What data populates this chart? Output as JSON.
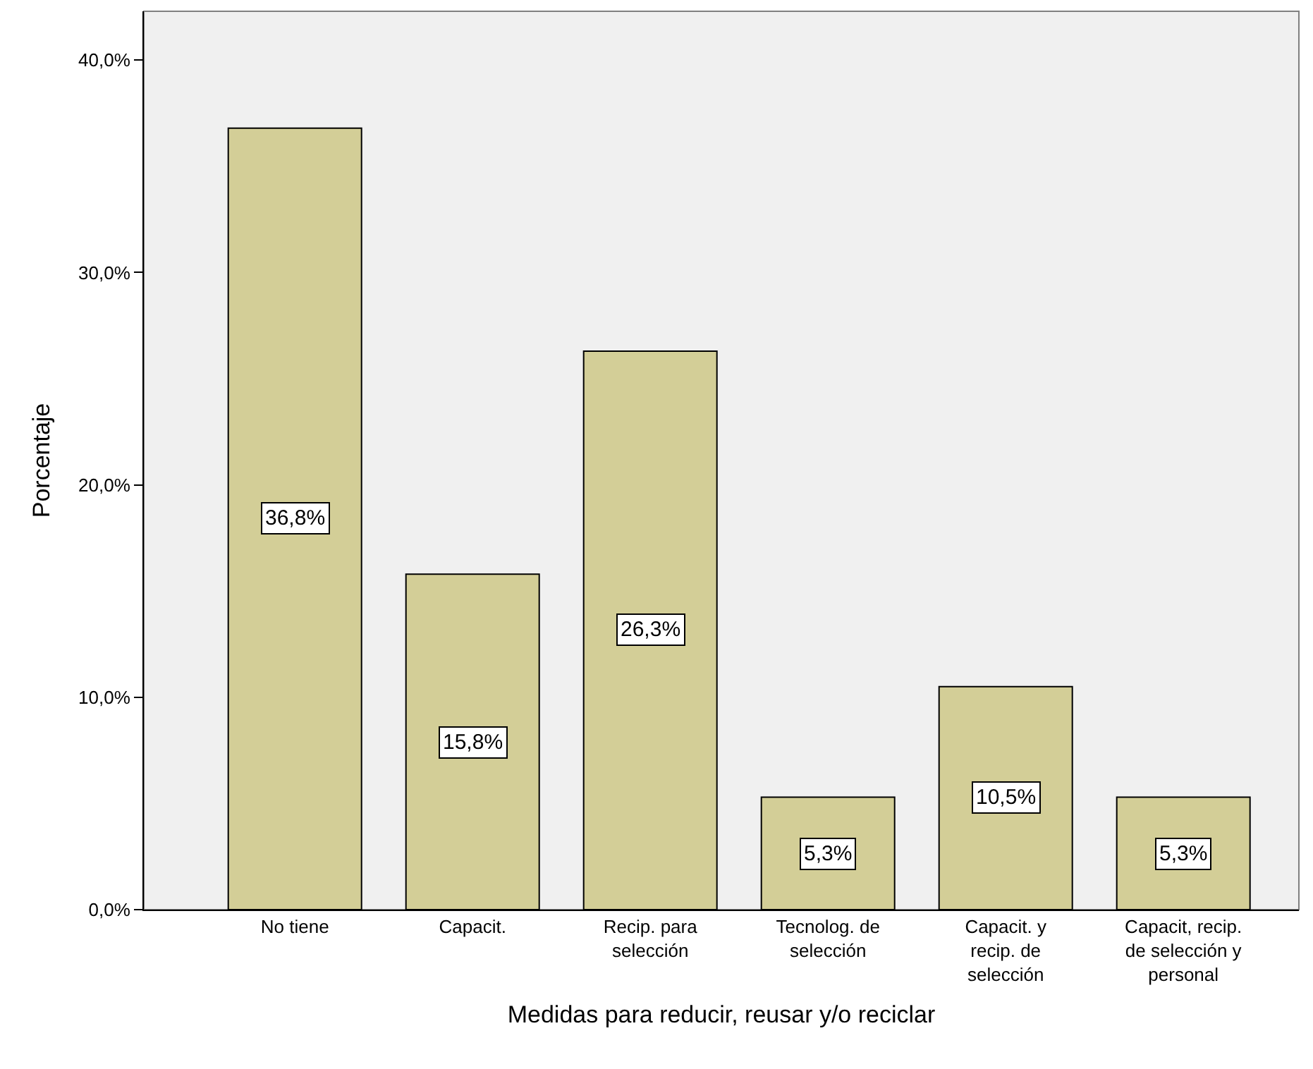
{
  "chart_data": {
    "type": "bar",
    "xlabel": "Medidas para reducir, reusar y/o reciclar",
    "ylabel": "Porcentaje",
    "categories": [
      "No tiene",
      "Capacit.",
      "Recip. para selección",
      "Tecnolog. de selección",
      "Capacit. y recip. de selección",
      "Capacit, recip. de selección y personal"
    ],
    "values": [
      36.8,
      15.8,
      26.3,
      5.3,
      10.5,
      5.3
    ],
    "value_labels": [
      "36,8%",
      "15,8%",
      "26,3%",
      "5,3%",
      "10,5%",
      "5,3%"
    ],
    "color": "#d3ce97",
    "ylim": [
      0,
      42.3
    ],
    "yticks": [
      {
        "value": 0,
        "label": "0,0%"
      },
      {
        "value": 10,
        "label": "10,0%"
      },
      {
        "value": 20,
        "label": "20,0%"
      },
      {
        "value": 30,
        "label": "30,0%"
      },
      {
        "value": 40,
        "label": "40,0%"
      }
    ],
    "grid": false,
    "legend": false
  }
}
